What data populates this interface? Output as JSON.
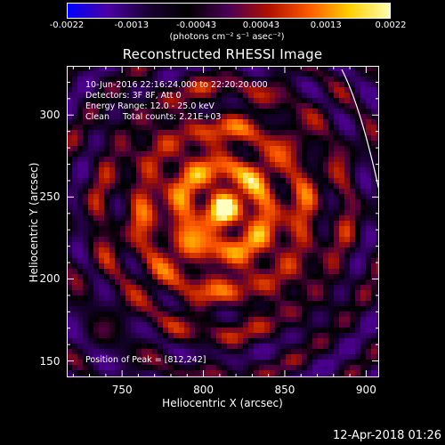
{
  "colorbar": {
    "ticks": [
      "-0.0022",
      "-0.0013",
      "-0.00043",
      "0.00043",
      "0.0013",
      "0.0022"
    ],
    "unit_label": "(photons cm⁻² s⁻¹ asec⁻²)",
    "colormap": [
      "#0000ff",
      "#4b00a6",
      "#1a0033",
      "#000000",
      "#4b0056",
      "#b01000",
      "#ff5a00",
      "#ffd000",
      "#ffffb0"
    ]
  },
  "title": "Reconstructed RHESSI Image",
  "annotations": {
    "time_range": "10-Jun-2016 22:16:24.000 to 22:20:20.000",
    "detectors": "Detectors: 3F 8F, Att 0",
    "energy": "Energy Range: 12.0 - 25.0 keV",
    "method": "Clean     Total counts: 2.21E+03",
    "peak": "Position of Peak = [812,242]"
  },
  "axes": {
    "xlabel": "Heliocentric X (arcsec)",
    "ylabel": "Heliocentric Y (arcsec)",
    "xticks": [
      "750",
      "800",
      "850",
      "900"
    ],
    "yticks": [
      "150",
      "200",
      "250",
      "300"
    ],
    "xlim": [
      716,
      908
    ],
    "ylim": [
      140,
      330
    ]
  },
  "image": {
    "peak": [
      812,
      242
    ],
    "limb_color": "#ffffff"
  },
  "timestamp": "12-Apr-2018 01:26"
}
